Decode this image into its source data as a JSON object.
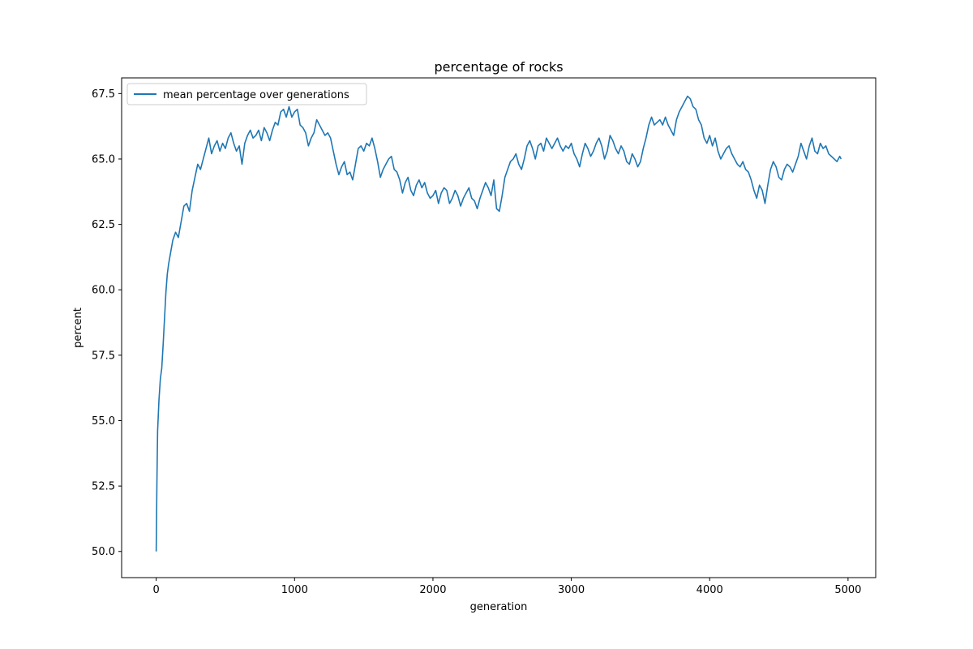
{
  "chart_data": {
    "type": "line",
    "title": "percentage of rocks",
    "xlabel": "generation",
    "ylabel": "percent",
    "xlim": [
      -250,
      5200
    ],
    "ylim": [
      49.0,
      68.1
    ],
    "x_ticks": [
      0,
      1000,
      2000,
      3000,
      4000,
      5000
    ],
    "x_tick_labels": [
      "0",
      "1000",
      "2000",
      "3000",
      "4000",
      "5000"
    ],
    "y_ticks": [
      50.0,
      52.5,
      55.0,
      57.5,
      60.0,
      62.5,
      65.0,
      67.5
    ],
    "y_tick_labels": [
      "50.0",
      "52.5",
      "55.0",
      "57.5",
      "60.0",
      "62.5",
      "65.0",
      "67.5"
    ],
    "grid": false,
    "legend_position": "upper-left",
    "series": [
      {
        "name": "mean percentage over generations",
        "color": "#1f77b4",
        "x": [
          0,
          5,
          10,
          20,
          30,
          40,
          50,
          60,
          70,
          80,
          90,
          100,
          120,
          140,
          160,
          180,
          200,
          220,
          240,
          260,
          280,
          300,
          320,
          340,
          360,
          380,
          400,
          420,
          440,
          460,
          480,
          500,
          520,
          540,
          560,
          580,
          600,
          620,
          640,
          660,
          680,
          700,
          720,
          740,
          760,
          780,
          800,
          820,
          840,
          860,
          880,
          900,
          920,
          940,
          960,
          980,
          1000,
          1020,
          1040,
          1060,
          1080,
          1100,
          1120,
          1140,
          1160,
          1180,
          1200,
          1220,
          1240,
          1260,
          1280,
          1300,
          1320,
          1340,
          1360,
          1380,
          1400,
          1420,
          1440,
          1460,
          1480,
          1500,
          1520,
          1540,
          1560,
          1580,
          1600,
          1620,
          1640,
          1660,
          1680,
          1700,
          1720,
          1740,
          1760,
          1780,
          1800,
          1820,
          1840,
          1860,
          1880,
          1900,
          1920,
          1940,
          1960,
          1980,
          2000,
          2020,
          2040,
          2060,
          2080,
          2100,
          2120,
          2140,
          2160,
          2180,
          2200,
          2220,
          2240,
          2260,
          2280,
          2300,
          2320,
          2340,
          2360,
          2380,
          2400,
          2420,
          2440,
          2460,
          2480,
          2500,
          2520,
          2540,
          2560,
          2580,
          2600,
          2620,
          2640,
          2660,
          2680,
          2700,
          2720,
          2740,
          2760,
          2780,
          2800,
          2820,
          2840,
          2860,
          2880,
          2900,
          2920,
          2940,
          2960,
          2980,
          3000,
          3020,
          3040,
          3060,
          3080,
          3100,
          3120,
          3140,
          3160,
          3180,
          3200,
          3220,
          3240,
          3260,
          3280,
          3300,
          3320,
          3340,
          3360,
          3380,
          3400,
          3420,
          3440,
          3460,
          3480,
          3500,
          3520,
          3540,
          3560,
          3580,
          3600,
          3620,
          3640,
          3660,
          3680,
          3700,
          3720,
          3740,
          3760,
          3780,
          3800,
          3820,
          3840,
          3860,
          3880,
          3900,
          3920,
          3940,
          3960,
          3980,
          4000,
          4020,
          4040,
          4060,
          4080,
          4100,
          4120,
          4140,
          4160,
          4180,
          4200,
          4220,
          4240,
          4260,
          4280,
          4300,
          4320,
          4340,
          4360,
          4380,
          4400,
          4420,
          4440,
          4460,
          4480,
          4500,
          4520,
          4540,
          4560,
          4580,
          4600,
          4620,
          4640,
          4660,
          4680,
          4700,
          4720,
          4740,
          4760,
          4780,
          4800,
          4820,
          4840,
          4860,
          4880,
          4900,
          4920,
          4940,
          4950
        ],
        "values": [
          50.0,
          52.6,
          54.6,
          55.8,
          56.6,
          57.0,
          57.9,
          58.9,
          59.9,
          60.6,
          61.0,
          61.3,
          61.9,
          62.2,
          62.0,
          62.6,
          63.2,
          63.3,
          63.0,
          63.8,
          64.3,
          64.8,
          64.6,
          65.0,
          65.4,
          65.8,
          65.2,
          65.5,
          65.7,
          65.3,
          65.6,
          65.4,
          65.8,
          66.0,
          65.6,
          65.3,
          65.5,
          64.8,
          65.6,
          65.9,
          66.1,
          65.8,
          65.9,
          66.1,
          65.7,
          66.2,
          66.0,
          65.7,
          66.1,
          66.4,
          66.3,
          66.8,
          66.9,
          66.6,
          67.0,
          66.6,
          66.8,
          66.9,
          66.3,
          66.2,
          66.0,
          65.5,
          65.8,
          66.0,
          66.5,
          66.3,
          66.1,
          65.9,
          66.0,
          65.8,
          65.3,
          64.8,
          64.4,
          64.7,
          64.9,
          64.4,
          64.5,
          64.2,
          64.8,
          65.4,
          65.5,
          65.3,
          65.6,
          65.5,
          65.8,
          65.4,
          64.9,
          64.3,
          64.6,
          64.8,
          65.0,
          65.1,
          64.6,
          64.5,
          64.2,
          63.7,
          64.1,
          64.3,
          63.8,
          63.6,
          64.0,
          64.2,
          63.9,
          64.1,
          63.7,
          63.5,
          63.6,
          63.8,
          63.3,
          63.7,
          63.9,
          63.8,
          63.3,
          63.5,
          63.8,
          63.6,
          63.2,
          63.5,
          63.7,
          63.9,
          63.5,
          63.4,
          63.1,
          63.5,
          63.8,
          64.1,
          63.9,
          63.6,
          64.2,
          63.1,
          63.0,
          63.6,
          64.3,
          64.6,
          64.9,
          65.0,
          65.2,
          64.8,
          64.6,
          65.0,
          65.5,
          65.7,
          65.4,
          65.0,
          65.5,
          65.6,
          65.3,
          65.8,
          65.6,
          65.4,
          65.6,
          65.8,
          65.5,
          65.3,
          65.5,
          65.4,
          65.6,
          65.2,
          65.0,
          64.7,
          65.2,
          65.6,
          65.4,
          65.1,
          65.3,
          65.6,
          65.8,
          65.5,
          65.0,
          65.3,
          65.9,
          65.7,
          65.4,
          65.2,
          65.5,
          65.3,
          64.9,
          64.8,
          65.2,
          65.0,
          64.7,
          64.9,
          65.4,
          65.8,
          66.3,
          66.6,
          66.3,
          66.4,
          66.5,
          66.3,
          66.6,
          66.3,
          66.1,
          65.9,
          66.5,
          66.8,
          67.0,
          67.2,
          67.4,
          67.3,
          67.0,
          66.9,
          66.5,
          66.3,
          65.8,
          65.6,
          65.9,
          65.5,
          65.8,
          65.3,
          65.0,
          65.2,
          65.4,
          65.5,
          65.2,
          65.0,
          64.8,
          64.7,
          64.9,
          64.6,
          64.5,
          64.2,
          63.8,
          63.5,
          64.0,
          63.8,
          63.3,
          64.0,
          64.6,
          64.9,
          64.7,
          64.3,
          64.2,
          64.6,
          64.8,
          64.7,
          64.5,
          64.8,
          65.1,
          65.6,
          65.3,
          65.0,
          65.5,
          65.8,
          65.3,
          65.2,
          65.6,
          65.4,
          65.5,
          65.2,
          65.1,
          65.0,
          64.9,
          65.1,
          65.0
        ]
      }
    ]
  }
}
